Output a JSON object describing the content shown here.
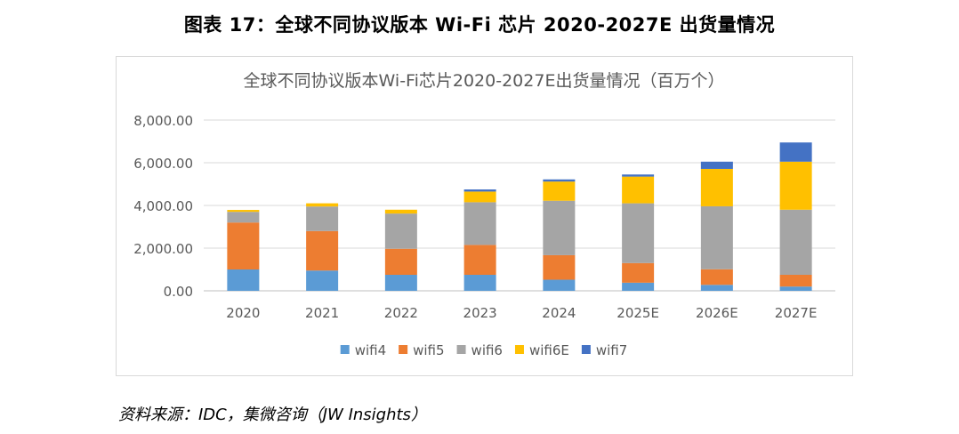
{
  "figure_title": "图表 17：全球不同协议版本 Wi-Fi 芯片 2020-2027E 出货量情况",
  "source_note": "资料来源：IDC，集微咨询（JW Insights）",
  "chart_data": {
    "type": "bar",
    "stacked": true,
    "title": "全球不同协议版本Wi-Fi芯片2020-2027E出货量情况（百万个）",
    "xlabel": "",
    "ylabel": "",
    "categories": [
      "2020",
      "2021",
      "2022",
      "2023",
      "2024",
      "2025E",
      "2026E",
      "2027E"
    ],
    "ylim": [
      0,
      8000
    ],
    "yticks": [
      0,
      2000,
      4000,
      6000,
      8000
    ],
    "ytick_labels": [
      "0.00",
      "2,000.00",
      "4,000.00",
      "6,000.00",
      "8,000.00"
    ],
    "grid": true,
    "legend_position": "bottom",
    "series": [
      {
        "name": "wifi4",
        "color": "#5b9bd5",
        "values": [
          1000,
          950,
          750,
          750,
          520,
          380,
          280,
          200
        ]
      },
      {
        "name": "wifi5",
        "color": "#ed7d31",
        "values": [
          2200,
          1850,
          1220,
          1400,
          1150,
          920,
          730,
          550
        ]
      },
      {
        "name": "wifi6",
        "color": "#a5a5a5",
        "values": [
          500,
          1150,
          1650,
          2000,
          2550,
          2800,
          2950,
          3050
        ]
      },
      {
        "name": "wifi6E",
        "color": "#ffc000",
        "values": [
          90,
          150,
          180,
          500,
          900,
          1250,
          1750,
          2250
        ]
      },
      {
        "name": "wifi7",
        "color": "#4472c4",
        "values": [
          0,
          0,
          0,
          100,
          100,
          100,
          340,
          900
        ]
      }
    ]
  }
}
